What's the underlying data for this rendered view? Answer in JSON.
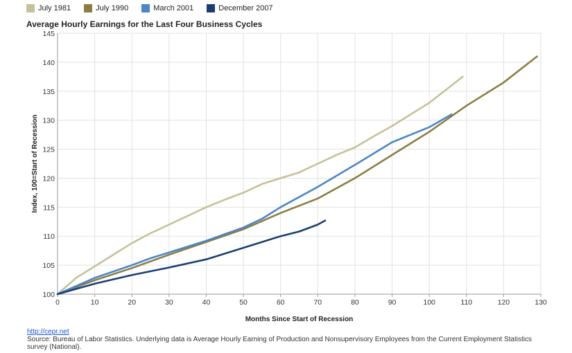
{
  "chart_data": {
    "type": "line",
    "title": "Average Hourly Earnings for the Last Four Business Cycles",
    "xlabel": "Months Since Start of Recession",
    "ylabel": "Index, 100=Start of Recession",
    "xlim": [
      0,
      130
    ],
    "ylim": [
      100,
      145
    ],
    "xticks": [
      0,
      10,
      20,
      30,
      40,
      50,
      60,
      70,
      80,
      90,
      100,
      110,
      120,
      130
    ],
    "yticks": [
      100,
      105,
      110,
      115,
      120,
      125,
      130,
      135,
      140,
      145
    ],
    "grid": true,
    "legend_position": "top",
    "series": [
      {
        "name": "July 1981",
        "color": "#c5c199",
        "x": [
          0,
          5,
          10,
          15,
          20,
          25,
          30,
          35,
          40,
          45,
          50,
          55,
          60,
          65,
          70,
          75,
          80,
          85,
          90,
          95,
          100,
          105,
          109
        ],
        "values": [
          100,
          102.8,
          104.8,
          106.8,
          108.8,
          110.5,
          112.0,
          113.5,
          115.0,
          116.3,
          117.5,
          119.0,
          120.0,
          121.0,
          122.5,
          124.0,
          125.3,
          127.2,
          129.0,
          131.0,
          133.0,
          135.5,
          137.5
        ]
      },
      {
        "name": "July 1990",
        "color": "#8b7e43",
        "x": [
          0,
          10,
          20,
          30,
          40,
          50,
          60,
          70,
          80,
          90,
          100,
          110,
          120,
          129
        ],
        "values": [
          100,
          102.4,
          104.5,
          106.8,
          109.0,
          111.2,
          114.0,
          116.5,
          120.0,
          124.0,
          128.0,
          132.5,
          136.5,
          141.0
        ]
      },
      {
        "name": "March 2001",
        "color": "#4a86c8",
        "x": [
          0,
          10,
          20,
          25,
          30,
          40,
          50,
          55,
          60,
          70,
          80,
          90,
          100,
          106
        ],
        "values": [
          100,
          102.8,
          105.0,
          106.2,
          107.2,
          109.2,
          111.5,
          113.0,
          115.0,
          118.5,
          122.3,
          126.2,
          128.8,
          131.0
        ]
      },
      {
        "name": "December 2007",
        "color": "#1a3e74",
        "x": [
          0,
          10,
          20,
          30,
          40,
          50,
          55,
          60,
          65,
          70,
          72
        ],
        "values": [
          100,
          101.8,
          103.3,
          104.6,
          106.0,
          108.0,
          109.0,
          110.0,
          110.8,
          112.0,
          112.7
        ]
      }
    ]
  },
  "footer": {
    "link_text": "http://cepr.net",
    "source_text": "Source: Bureau of Labor Statistics. Underlying data is Average Hourly Earning of Production and Nonsupervisory Employees from the Current Employment Statistics survey (National)."
  }
}
